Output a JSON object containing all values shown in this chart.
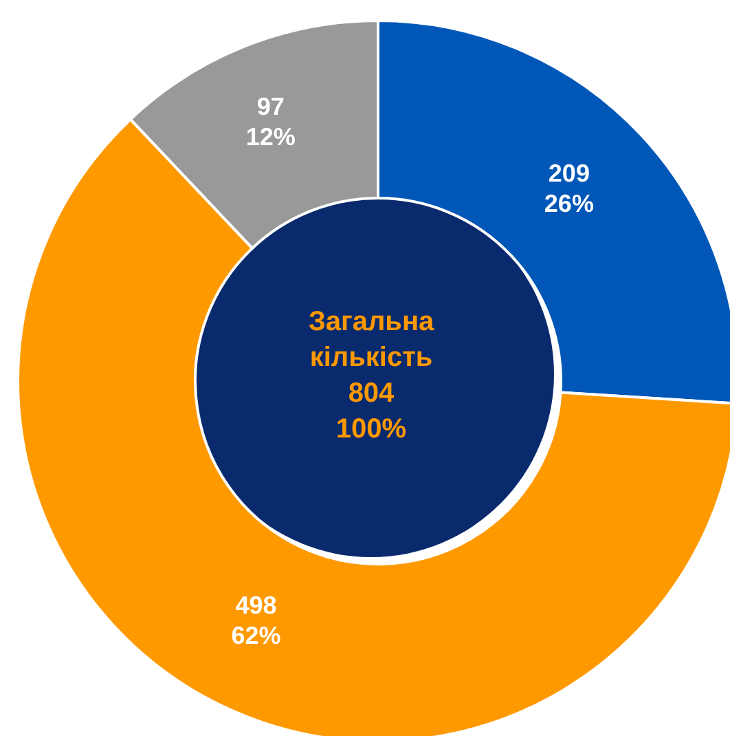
{
  "chart_data": {
    "type": "donut",
    "categories": [
      null,
      null,
      null
    ],
    "values": [
      209,
      498,
      97
    ],
    "colors": [
      "#0057b8",
      "#ff9900",
      "#999999"
    ],
    "value_labels": [
      "209\n26%",
      "498\n62%",
      "97\n12%"
    ],
    "annotations": [
      "Загальна\nкількість",
      "804",
      "100%"
    ]
  }
}
